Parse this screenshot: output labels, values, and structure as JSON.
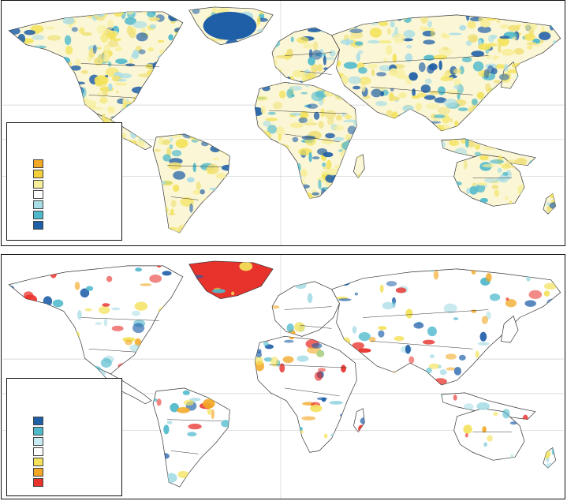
{
  "panels": [
    {
      "id": "top",
      "legend": {
        "swatches": [
          "#f2a825",
          "#f3cf3a",
          "#f7ee9a",
          "#ffffff",
          "#a9dde6",
          "#4fb9cc",
          "#1f5fa8"
        ]
      },
      "land_colors": {
        "warm": [
          "#f3e25a",
          "#f7ee9a",
          "#efe07a"
        ],
        "cool": [
          "#a9dde6",
          "#4fb9cc",
          "#1f5fa8"
        ],
        "greenland": "#1f5fa8"
      }
    },
    {
      "id": "bottom",
      "legend": {
        "swatches": [
          "#1f5fa8",
          "#4fb9cc",
          "#c9ecf2",
          "#ffffff",
          "#f3e25a",
          "#f2a825",
          "#e8332d"
        ]
      },
      "land_colors": {
        "warm": [
          "#f2a825",
          "#f3e25a",
          "#e8332d"
        ],
        "cool": [
          "#a9dde6",
          "#4fb9cc",
          "#1f5fa8"
        ],
        "greenland": "#e8332d"
      }
    }
  ]
}
